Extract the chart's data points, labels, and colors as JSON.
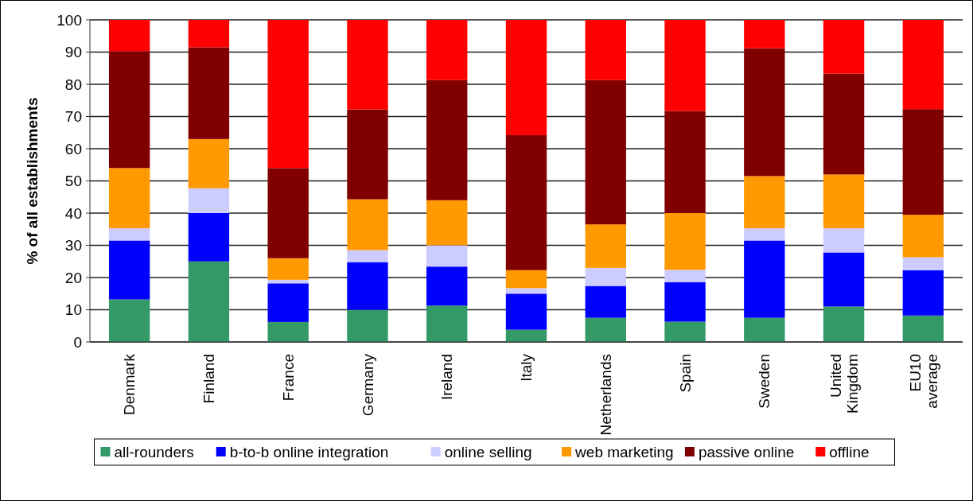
{
  "chart_data": {
    "type": "bar",
    "stacked": true,
    "ylabel": "% of all establishments",
    "categories": [
      "Denmark",
      "Finland",
      "France",
      "Germany",
      "Ireland",
      "Italy",
      "Netherlands",
      "Spain",
      "Sweden",
      "United\nKingdom",
      "EU10\naverage"
    ],
    "series": [
      {
        "name": "all-rounders",
        "color": "#339966",
        "values": [
          13.2,
          25,
          6.2,
          10,
          11.3,
          3.8,
          7.5,
          6.3,
          7.5,
          11,
          8.2
        ]
      },
      {
        "name": "b-to-b online integration",
        "color": "#0000ff",
        "values": [
          18.3,
          15,
          12,
          14.8,
          12.1,
          11.2,
          9.9,
          12.3,
          24,
          16.8,
          14.1
        ]
      },
      {
        "name": "online selling",
        "color": "#ccccff",
        "values": [
          3.8,
          7.7,
          1.1,
          3.7,
          6.6,
          1.7,
          5.6,
          3.8,
          3.8,
          7.5,
          4
        ]
      },
      {
        "name": "web marketing",
        "color": "#ff9900",
        "values": [
          18.7,
          15.3,
          6.7,
          15.8,
          14,
          5.6,
          13.5,
          17.6,
          16.2,
          16.7,
          13.2
        ]
      },
      {
        "name": "passive online",
        "color": "#800000",
        "values": [
          36.3,
          28.5,
          28,
          27.9,
          37.3,
          41.9,
          44.8,
          31.7,
          39.7,
          31.3,
          32.8
        ]
      },
      {
        "name": "offline",
        "color": "#ff0000",
        "values": [
          9.7,
          8.5,
          46,
          27.8,
          18.7,
          35.8,
          18.7,
          28.3,
          8.8,
          16.7,
          27.7
        ]
      }
    ],
    "ylim": [
      0,
      100
    ],
    "yticks": [
      0,
      10,
      20,
      30,
      40,
      50,
      60,
      70,
      80,
      90,
      100
    ],
    "grid": "y",
    "legend": "bottom"
  }
}
